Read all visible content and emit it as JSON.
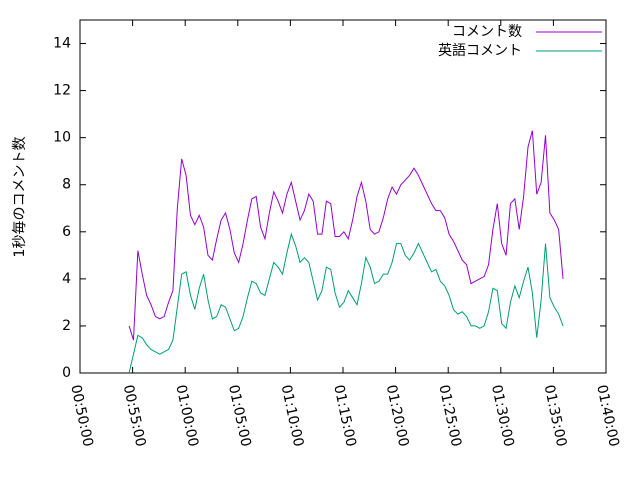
{
  "chart_data": {
    "type": "line",
    "y_label": "1秒毎のコメント数",
    "x": [
      "00:54:40",
      "00:55:05",
      "00:55:30",
      "00:55:55",
      "00:56:20",
      "00:56:45",
      "00:57:10",
      "00:57:35",
      "00:58:00",
      "00:58:25",
      "00:58:50",
      "00:59:15",
      "00:59:40",
      "01:00:05",
      "01:00:30",
      "01:00:55",
      "01:01:20",
      "01:01:45",
      "01:02:10",
      "01:02:35",
      "01:03:00",
      "01:03:25",
      "01:03:50",
      "01:04:15",
      "01:04:40",
      "01:05:05",
      "01:05:30",
      "01:05:55",
      "01:06:20",
      "01:06:45",
      "01:07:10",
      "01:07:35",
      "01:08:00",
      "01:08:25",
      "01:08:50",
      "01:09:15",
      "01:09:40",
      "01:10:05",
      "01:10:30",
      "01:10:55",
      "01:11:20",
      "01:11:45",
      "01:12:10",
      "01:12:35",
      "01:13:00",
      "01:13:25",
      "01:13:50",
      "01:14:15",
      "01:14:40",
      "01:15:05",
      "01:15:30",
      "01:15:55",
      "01:16:20",
      "01:16:45",
      "01:17:10",
      "01:17:35",
      "01:18:00",
      "01:18:25",
      "01:18:50",
      "01:19:15",
      "01:19:40",
      "01:20:05",
      "01:20:30",
      "01:20:55",
      "01:21:20",
      "01:21:45",
      "01:22:10",
      "01:22:35",
      "01:23:00",
      "01:23:25",
      "01:23:50",
      "01:24:15",
      "01:24:40",
      "01:25:05",
      "01:25:30",
      "01:25:55",
      "01:26:20",
      "01:26:45",
      "01:27:10",
      "01:27:35",
      "01:28:00",
      "01:28:25",
      "01:28:50",
      "01:29:15",
      "01:29:40",
      "01:30:05",
      "01:30:30",
      "01:30:55",
      "01:31:20",
      "01:31:45",
      "01:32:10",
      "01:32:35",
      "01:33:00",
      "01:33:25",
      "01:33:50",
      "01:34:15",
      "01:34:40",
      "01:35:05",
      "01:35:30",
      "01:35:55"
    ],
    "series": [
      {
        "name": "コメント数",
        "color": "#9400d3",
        "values": [
          2.0,
          1.4,
          5.2,
          4.2,
          3.3,
          2.9,
          2.4,
          2.3,
          2.4,
          3.0,
          3.5,
          7.0,
          9.1,
          8.4,
          6.7,
          6.3,
          6.7,
          6.2,
          5.0,
          4.8,
          5.7,
          6.5,
          6.8,
          6.1,
          5.1,
          4.7,
          5.5,
          6.5,
          7.4,
          7.5,
          6.2,
          5.7,
          6.8,
          7.7,
          7.3,
          6.8,
          7.6,
          8.1,
          7.3,
          6.5,
          6.9,
          7.6,
          7.3,
          5.9,
          5.9,
          7.3,
          7.2,
          5.8,
          5.8,
          6.0,
          5.7,
          6.5,
          7.5,
          8.1,
          7.3,
          6.1,
          5.9,
          6.0,
          6.6,
          7.4,
          7.9,
          7.6,
          8.0,
          8.2,
          8.4,
          8.7,
          8.4,
          8.0,
          7.6,
          7.2,
          6.9,
          6.9,
          6.6,
          5.9,
          5.6,
          5.2,
          4.8,
          4.6,
          3.8,
          3.9,
          4.0,
          4.1,
          4.6,
          6.1,
          7.2,
          5.5,
          5.0,
          7.2,
          7.4,
          6.1,
          7.5,
          9.6,
          10.3,
          7.6,
          8.1,
          10.1,
          6.8,
          6.5,
          6.1,
          4.0
        ]
      },
      {
        "name": "英語コメント",
        "color": "#009e73",
        "values": [
          0,
          0.8,
          1.6,
          1.5,
          1.2,
          1.0,
          0.9,
          0.8,
          0.9,
          1.0,
          1.4,
          2.8,
          4.2,
          4.3,
          3.3,
          2.7,
          3.6,
          4.2,
          3.1,
          2.3,
          2.4,
          2.9,
          2.8,
          2.3,
          1.8,
          1.9,
          2.4,
          3.2,
          3.9,
          3.8,
          3.4,
          3.3,
          4.0,
          4.7,
          4.5,
          4.2,
          5.1,
          5.9,
          5.4,
          4.7,
          4.9,
          4.7,
          3.9,
          3.1,
          3.5,
          4.5,
          4.4,
          3.4,
          2.8,
          3.0,
          3.5,
          3.2,
          2.9,
          3.8,
          4.9,
          4.5,
          3.8,
          3.9,
          4.2,
          4.2,
          4.7,
          5.5,
          5.5,
          5.0,
          4.8,
          5.1,
          5.5,
          5.1,
          4.7,
          4.3,
          4.4,
          3.9,
          3.7,
          3.3,
          2.7,
          2.5,
          2.6,
          2.4,
          2.0,
          2.0,
          1.9,
          2.0,
          2.6,
          3.6,
          3.5,
          2.1,
          1.9,
          3.0,
          3.7,
          3.2,
          3.9,
          4.5,
          3.4,
          1.5,
          3.1,
          5.5,
          3.2,
          2.8,
          2.5,
          2.0
        ]
      }
    ],
    "xlim": [
      "00:50:00",
      "01:40:00"
    ],
    "xticks": [
      "00:50:00",
      "00:55:00",
      "01:00:00",
      "01:05:00",
      "01:10:00",
      "01:15:00",
      "01:20:00",
      "01:25:00",
      "01:30:00",
      "01:35:00",
      "01:40:00"
    ],
    "ylim": [
      0,
      15
    ],
    "yticks": [
      0,
      2,
      4,
      6,
      8,
      10,
      12,
      14
    ],
    "legend": "top-right"
  }
}
